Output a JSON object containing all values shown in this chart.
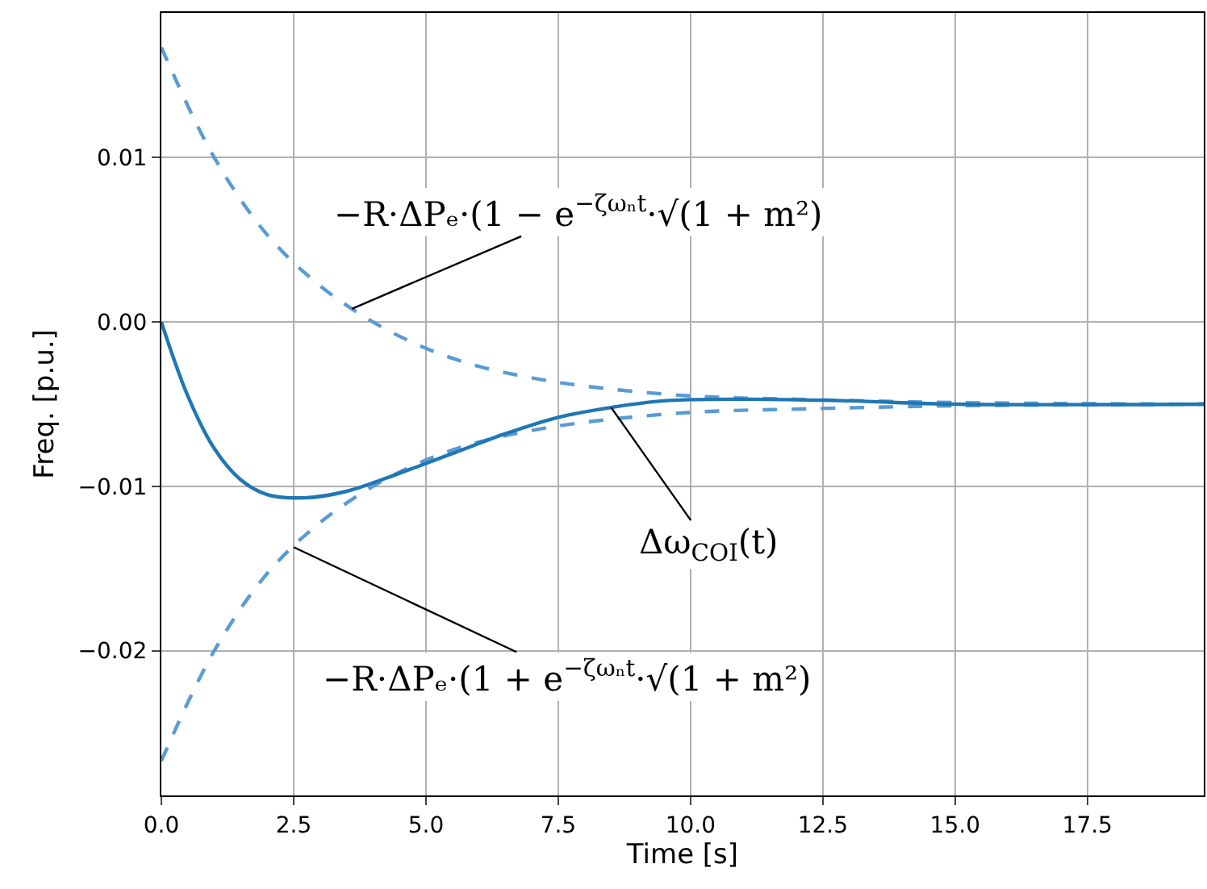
{
  "chart_data": {
    "type": "line",
    "xlabel": "Time [s]",
    "ylabel": "Freq. [p.u.]",
    "xlim": [
      0,
      19.7
    ],
    "ylim": [
      -0.0288,
      0.0188
    ],
    "xticks": [
      {
        "value": 0,
        "label": "0.0"
      },
      {
        "value": 2.5,
        "label": "2.5"
      },
      {
        "value": 5,
        "label": "5.0"
      },
      {
        "value": 7.5,
        "label": "7.5"
      },
      {
        "value": 10,
        "label": "10.0"
      },
      {
        "value": 12.5,
        "label": "12.5"
      },
      {
        "value": 15,
        "label": "15.0"
      },
      {
        "value": 17.5,
        "label": "17.5"
      }
    ],
    "yticks": [
      {
        "value": -0.02,
        "label": "−0.02"
      },
      {
        "value": -0.01,
        "label": "−0.01"
      },
      {
        "value": 0,
        "label": "0.00"
      },
      {
        "value": 0.01,
        "label": "0.01"
      }
    ],
    "grid": true,
    "marker": "none",
    "series": [
      {
        "color": "#5a9bd3",
        "line_style": "dashed",
        "x": [
          0,
          1,
          2,
          3,
          4,
          5,
          6,
          7,
          8,
          10,
          12,
          15,
          19.7
        ],
        "values": [
          0.0167,
          0.01,
          0.0053,
          0.0022,
          0.0,
          -0.0016,
          -0.0027,
          -0.0034,
          -0.0039,
          -0.0045,
          -0.0047,
          -0.0049,
          -0.005
        ]
      },
      {
        "color": "#5a9bd3",
        "line_style": "dashed",
        "x": [
          0,
          1,
          2,
          3,
          4,
          5,
          6,
          7,
          8,
          10,
          12,
          15,
          19.7
        ],
        "values": [
          -0.0267,
          -0.02,
          -0.0153,
          -0.0122,
          -0.01,
          -0.0084,
          -0.0073,
          -0.0066,
          -0.0061,
          -0.0055,
          -0.0053,
          -0.0051,
          -0.005
        ]
      },
      {
        "color": "#1f77b4",
        "line_style": "solid",
        "x": [
          0,
          0.5,
          1,
          1.5,
          2,
          2.7,
          3.5,
          4.5,
          5.5,
          6.5,
          7.5,
          8.5,
          9.5,
          11,
          13,
          15,
          19.7
        ],
        "values": [
          0,
          -0.0045,
          -0.0077,
          -0.0096,
          -0.0105,
          -0.0107,
          -0.0103,
          -0.0092,
          -0.008,
          -0.0068,
          -0.0058,
          -0.0052,
          -0.0048,
          -0.0047,
          -0.0048,
          -0.005,
          -0.005
        ]
      }
    ],
    "annotations": [
      {
        "text": "−R·ΔPₑ·(1 − e$^{−ζωₙt}$·√(1 + m²)",
        "x": 3.6,
        "y": 0.0008
      },
      {
        "text": "Δω$_{COI}$(t)",
        "x": 8.5,
        "y": -0.0052
      },
      {
        "text": "−R·ΔPₑ·(1 + e$^{−ζωₙt}$·√(1 + m²)",
        "x": 2.5,
        "y": -0.0137
      }
    ]
  }
}
